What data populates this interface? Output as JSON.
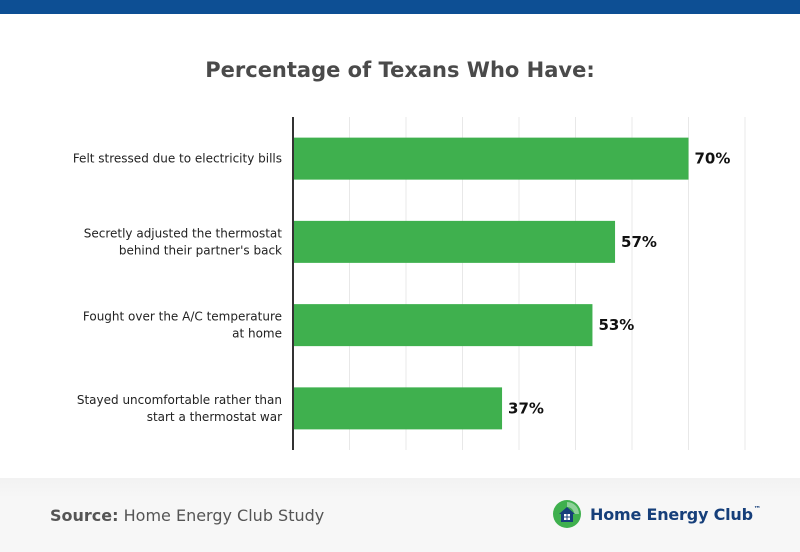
{
  "header": {
    "title": "Percentage of Texans Who Have:"
  },
  "colors": {
    "bar": "#3fb04e",
    "axis": "#333333",
    "grid": "#e8e8e8",
    "top_band": "#0d4f94",
    "brand": "#163f7a"
  },
  "chart_data": {
    "type": "bar",
    "orientation": "horizontal",
    "title": "Percentage of Texans Who Have:",
    "categories": [
      [
        "Felt stressed due to electricity bills"
      ],
      [
        "Secretly adjusted the thermostat",
        "behind their partner's back"
      ],
      [
        "Fought over the A/C temperature",
        "at home"
      ],
      [
        "Stayed uncomfortable rather than",
        "start a thermostat war"
      ]
    ],
    "values": [
      70,
      57,
      53,
      37
    ],
    "value_labels": [
      "70%",
      "57%",
      "53%",
      "37%"
    ],
    "xlim": [
      0,
      80
    ],
    "grid": true,
    "legend": "none"
  },
  "footer": {
    "source_label": "Source:",
    "source_text": " Home Energy Club Study",
    "brand_name": "Home Energy Club",
    "brand_tm": "™",
    "brand_icon": "house-leaf-logo-icon"
  }
}
